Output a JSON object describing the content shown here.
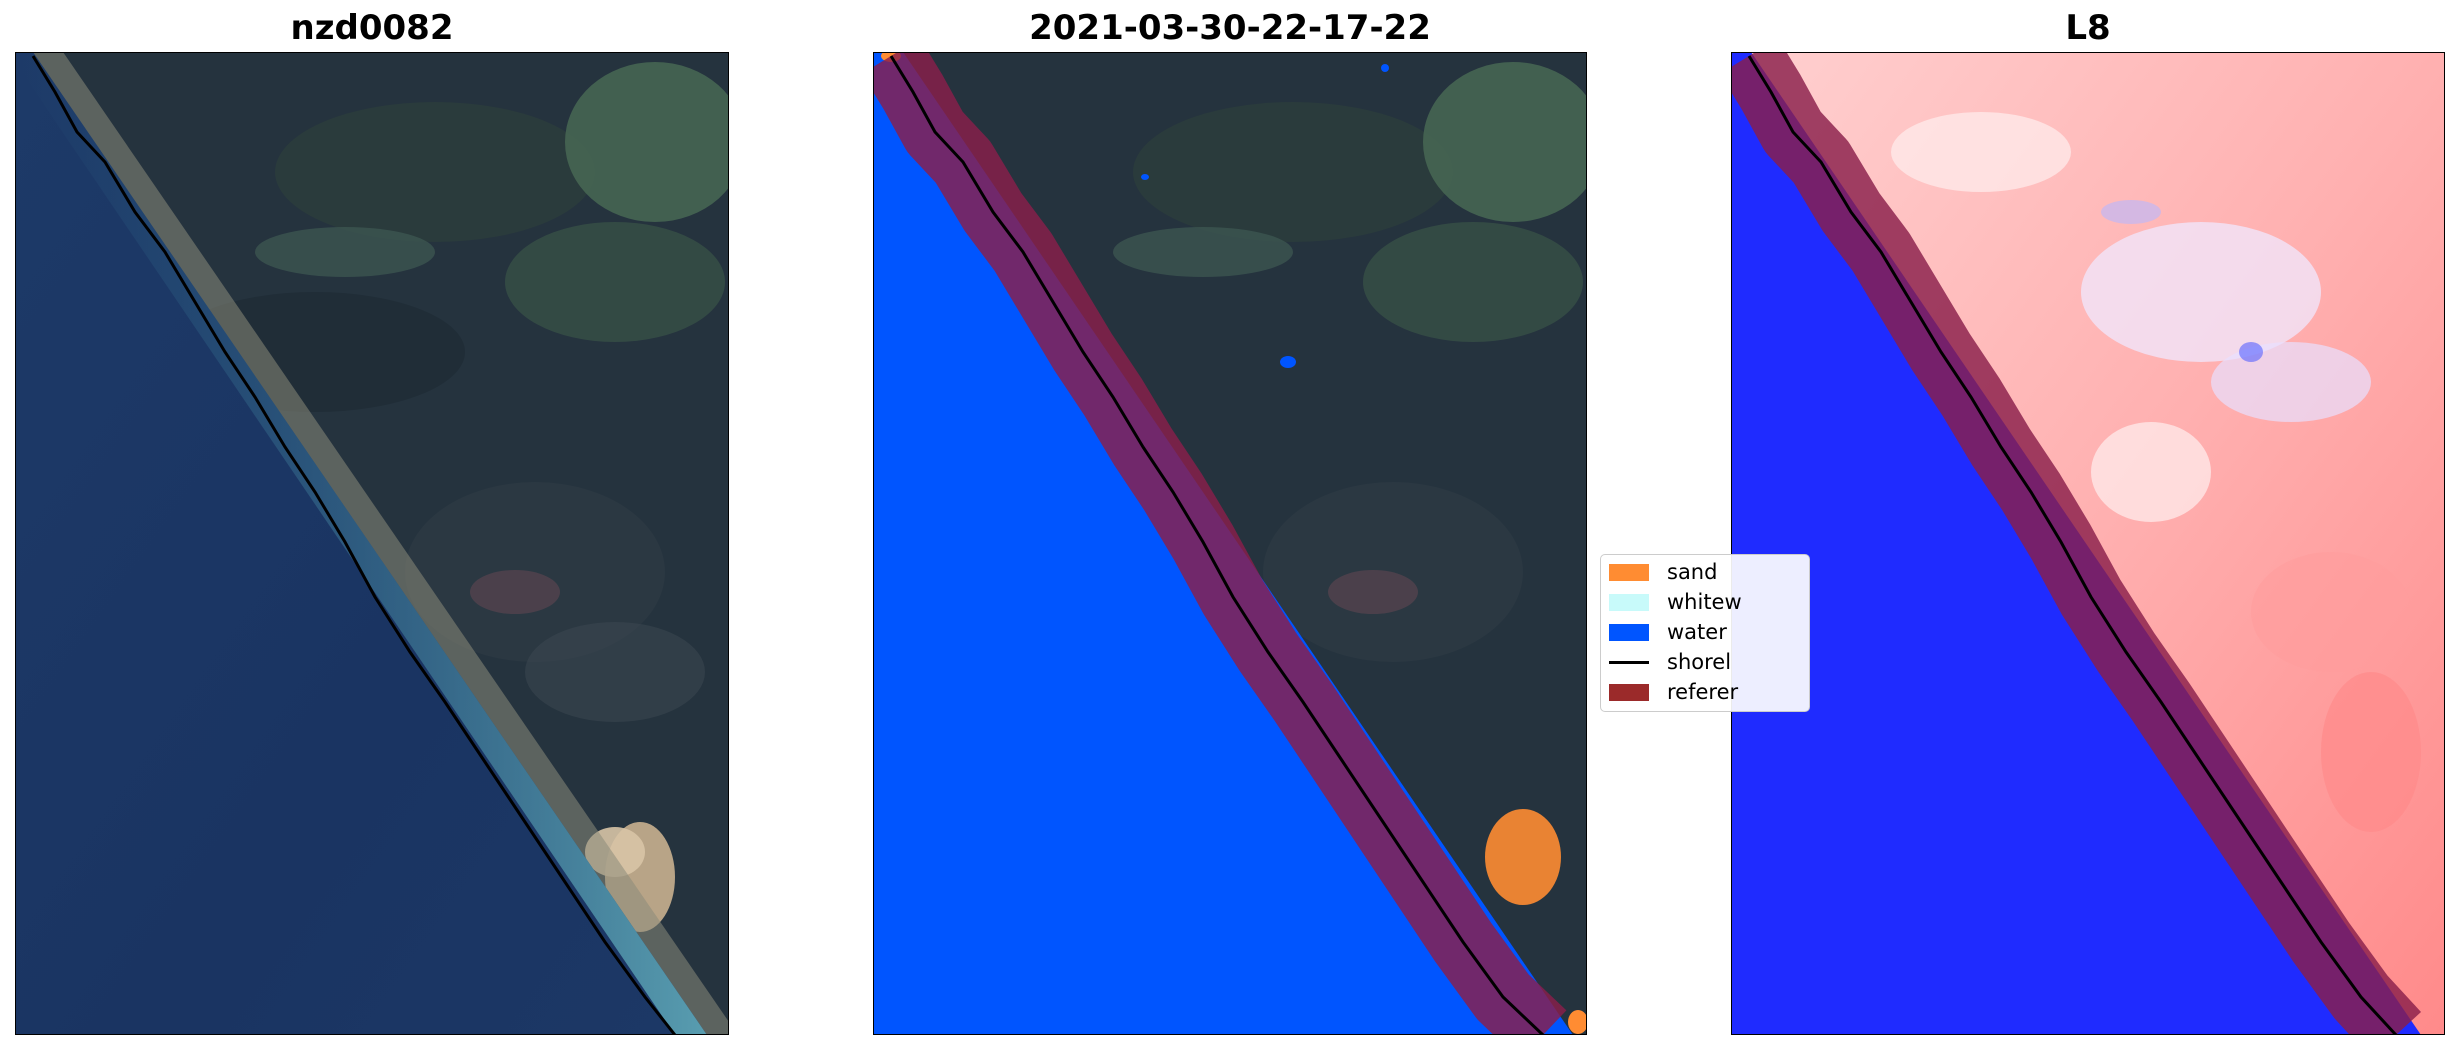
{
  "panels": [
    {
      "title": "nzd0082"
    },
    {
      "title": "2021-03-30-22-17-22"
    },
    {
      "title": "L8"
    }
  ],
  "legend": {
    "items": [
      {
        "label": "sand",
        "color": "#ff8c32",
        "kind": "patch"
      },
      {
        "label": "whitew",
        "color": "#c8fafa",
        "kind": "patch"
      },
      {
        "label": "water",
        "color": "#0055ff",
        "kind": "patch"
      },
      {
        "label": "shorel",
        "color": "#000000",
        "kind": "line"
      },
      {
        "label": "referer",
        "color": "#9b2a2a",
        "kind": "patch"
      }
    ]
  },
  "colors": {
    "ocean": "#1f3c6e",
    "land_forest": "#26343f",
    "classified_water": "#0055ff",
    "reference_buffer": "#8a1f4a",
    "index_land": "#ff8a8a",
    "index_water": "#1f2bff"
  }
}
